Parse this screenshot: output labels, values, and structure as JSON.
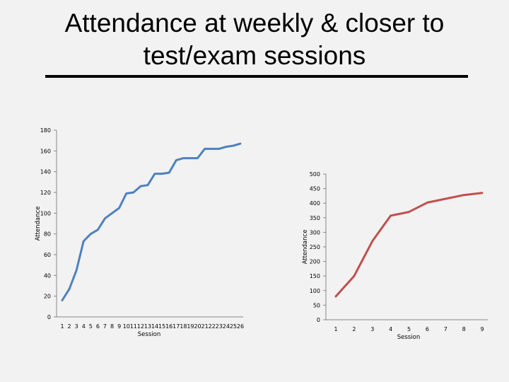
{
  "slide": {
    "title": "Attendance at weekly & closer to test/exam sessions"
  },
  "chart_data": [
    {
      "type": "line",
      "xlabel": "Session",
      "ylabel": "Attendance",
      "ylim": [
        0,
        180
      ],
      "yticks": [
        0,
        20,
        40,
        60,
        80,
        100,
        120,
        140,
        160,
        180
      ],
      "grid": false,
      "categories": [
        "1",
        "2",
        "3",
        "4",
        "5",
        "6",
        "7",
        "8",
        "9",
        "10",
        "11",
        "12",
        "13",
        "14",
        "15",
        "16",
        "17",
        "18",
        "19",
        "20",
        "21",
        "22",
        "23",
        "24",
        "25",
        "26"
      ],
      "series": [
        {
          "color": "#4f81bd",
          "values": [
            16,
            27,
            45,
            73,
            80,
            84,
            95,
            100,
            105,
            119,
            120,
            126,
            127,
            138,
            138,
            139,
            151,
            153,
            153,
            153,
            162,
            162,
            162,
            164,
            165,
            167
          ]
        }
      ]
    },
    {
      "type": "line",
      "xlabel": "Session",
      "ylabel": "Attendance",
      "ylim": [
        0,
        500
      ],
      "yticks": [
        0,
        50,
        100,
        150,
        200,
        250,
        300,
        350,
        400,
        450,
        500
      ],
      "grid": false,
      "categories": [
        "1",
        "2",
        "3",
        "4",
        "5",
        "6",
        "7",
        "8",
        "9"
      ],
      "series": [
        {
          "color": "#c0504d",
          "values": [
            80,
            150,
            270,
            357,
            370,
            402,
            415,
            428,
            435
          ]
        }
      ]
    }
  ]
}
